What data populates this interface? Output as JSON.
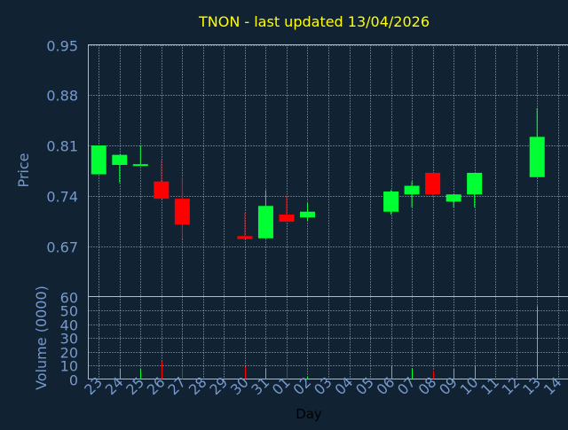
{
  "chart_data": [
    {
      "type": "candlestick",
      "title": "TNON - last updated 13/04/2026",
      "ylabel": "Price",
      "ylim": [
        0.6,
        0.95
      ],
      "yticks": [
        "0.95",
        "0.88",
        "0.81",
        "0.74",
        "0.67"
      ],
      "grid": true,
      "colors": {
        "up": "#00ff33",
        "down": "#ff0000",
        "title": "#ffff00",
        "axis_text": "#7799cc",
        "background": "#112233",
        "grid": "#aabbcc"
      },
      "candles": [
        {
          "day": "23",
          "open": 0.77,
          "high": 0.81,
          "low": 0.77,
          "close": 0.81
        },
        {
          "day": "24",
          "open": 0.783,
          "high": 0.797,
          "low": 0.758,
          "close": 0.797
        },
        {
          "day": "25",
          "open": 0.782,
          "high": 0.81,
          "low": 0.782,
          "close": 0.784
        },
        {
          "day": "26",
          "open": 0.76,
          "high": 0.79,
          "low": 0.736,
          "close": 0.736
        },
        {
          "day": "27",
          "open": 0.736,
          "high": 0.766,
          "low": 0.68,
          "close": 0.7
        },
        {
          "day": "30",
          "open": 0.684,
          "high": 0.716,
          "low": 0.68,
          "close": 0.68
        },
        {
          "day": "31",
          "open": 0.681,
          "high": 0.748,
          "low": 0.681,
          "close": 0.726
        },
        {
          "day": "01",
          "open": 0.714,
          "high": 0.74,
          "low": 0.704,
          "close": 0.704
        },
        {
          "day": "02",
          "open": 0.71,
          "high": 0.73,
          "low": 0.706,
          "close": 0.718
        },
        {
          "day": "06",
          "open": 0.718,
          "high": 0.748,
          "low": 0.714,
          "close": 0.746
        },
        {
          "day": "07",
          "open": 0.742,
          "high": 0.76,
          "low": 0.724,
          "close": 0.754
        },
        {
          "day": "08",
          "open": 0.772,
          "high": 0.772,
          "low": 0.74,
          "close": 0.742
        },
        {
          "day": "09",
          "open": 0.732,
          "high": 0.742,
          "low": 0.724,
          "close": 0.742
        },
        {
          "day": "10",
          "open": 0.742,
          "high": 0.772,
          "low": 0.724,
          "close": 0.772
        },
        {
          "day": "13",
          "open": 0.766,
          "high": 0.862,
          "low": 0.766,
          "close": 0.822
        }
      ]
    },
    {
      "type": "bar",
      "ylabel": "Volume (0000)",
      "xlabel": "Day",
      "ylim": [
        0,
        60
      ],
      "yticks": [
        "0",
        "10",
        "20",
        "30",
        "40",
        "50",
        "60"
      ],
      "grid": true,
      "categories": [
        "23",
        "24",
        "25",
        "26",
        "27",
        "28",
        "29",
        "30",
        "31",
        "01",
        "02",
        "03",
        "04",
        "05",
        "06",
        "07",
        "08",
        "09",
        "10",
        "11",
        "12",
        "13",
        "14"
      ],
      "bars": [
        {
          "day": "24",
          "value": 7,
          "direction": "up"
        },
        {
          "day": "25",
          "value": 7,
          "direction": "up"
        },
        {
          "day": "26",
          "value": 13,
          "direction": "down"
        },
        {
          "day": "27",
          "value": 8,
          "direction": "down"
        },
        {
          "day": "30",
          "value": 9,
          "direction": "down"
        },
        {
          "day": "31",
          "value": 8,
          "direction": "up"
        },
        {
          "day": "01",
          "value": 10,
          "direction": "down"
        },
        {
          "day": "02",
          "value": 2,
          "direction": "up"
        },
        {
          "day": "06",
          "value": 9,
          "direction": "up"
        },
        {
          "day": "07",
          "value": 8,
          "direction": "up"
        },
        {
          "day": "08",
          "value": 6,
          "direction": "down"
        },
        {
          "day": "09",
          "value": 7,
          "direction": "up"
        },
        {
          "day": "10",
          "value": 10,
          "direction": "up"
        },
        {
          "day": "13",
          "value": 53,
          "direction": "up"
        }
      ]
    }
  ]
}
